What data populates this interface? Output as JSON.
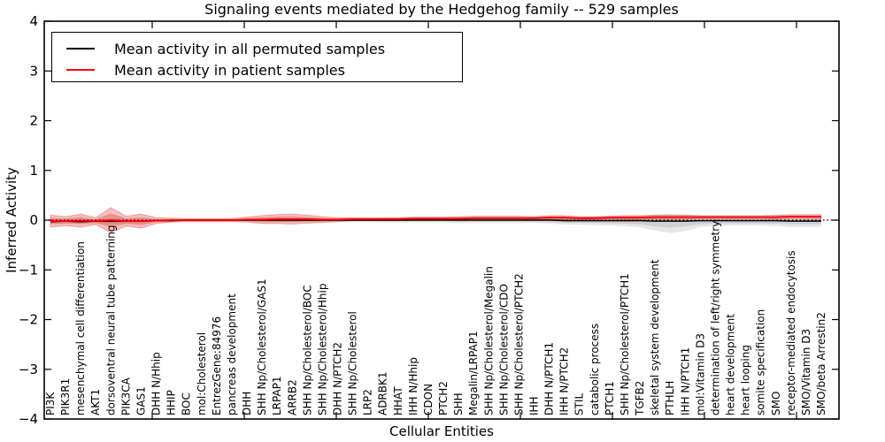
{
  "chart_data": {
    "type": "line",
    "title": "Signaling events mediated by the Hedgehog family -- 529 samples",
    "xlabel": "Cellular Entities",
    "ylabel": "Inferred Activity",
    "ylim": [
      -4,
      4
    ],
    "yticks": [
      4,
      3,
      2,
      1,
      0,
      -1,
      -2,
      -3,
      -4
    ],
    "grid": false,
    "legend_position": "upper left",
    "zero_reference_line": "black dotted line at y=0",
    "x_tick_label_rotation": 90,
    "categories": [
      "PI3K",
      "PIK3R1",
      "mesenchymal cell differentiation",
      "AKT1",
      "dorsoventral neural tube patterning",
      "PIK3CA",
      "GAS1",
      "DHH N/Hhip",
      "HHIP",
      "BOC",
      "mol:Cholesterol",
      "EntrezGene:84976",
      "pancreas development",
      "DHH",
      "SHH Np/Cholesterol/GAS1",
      "LRPAP1",
      "ARRB2",
      "SHH Np/Cholesterol/BOC",
      "SHH Np/Cholesterol/Hhip",
      "DHH N/PTCH2",
      "SHH Np/Cholesterol",
      "LRP2",
      "ADRBK1",
      "HHAT",
      "IHH N/Hhip",
      "CDON",
      "PTCH2",
      "SHH",
      "Megalin/LRPAP1",
      "SHH Np/Cholesterol/Megalin",
      "SHH Np/Cholesterol/CDO",
      "SHH Np/Cholesterol/PTCH2",
      "IHH",
      "DHH N/PTCH1",
      "IHH N/PTCH2",
      "STIL",
      "catabolic process",
      "PTCH1",
      "SHH Np/Cholesterol/PTCH1",
      "TGFB2",
      "skeletal system development",
      "PTHLH",
      "IHH N/PTCH1",
      "mol:Vitamin D3",
      "determination of left/right symmetry",
      "heart development",
      "heart looping",
      "somite specification",
      "SMO",
      "receptor-mediated endocytosis",
      "SMO/Vitamin D3",
      "SMO/beta Arrestin2"
    ],
    "series": [
      {
        "name": "Mean activity in all permuted samples",
        "color": "#000000",
        "band_color": "#787878",
        "values": [
          -0.03,
          -0.02,
          -0.03,
          -0.02,
          -0.02,
          -0.02,
          -0.02,
          -0.01,
          -0.01,
          0,
          0,
          0,
          0,
          0,
          0,
          0,
          0,
          0,
          0,
          0,
          0,
          0,
          0,
          0,
          0,
          0,
          0,
          0,
          0,
          0,
          0,
          0,
          0,
          0,
          -0.01,
          -0.01,
          -0.01,
          -0.01,
          -0.01,
          -0.01,
          -0.02,
          -0.02,
          -0.02,
          -0.01,
          -0.01,
          -0.01,
          -0.01,
          -0.01,
          -0.01,
          -0.02,
          -0.02,
          -0.02
        ],
        "band_upper": [
          0.04,
          0.04,
          0.04,
          0.04,
          0.05,
          0.04,
          0.04,
          0.03,
          0.03,
          0.03,
          0.03,
          0.03,
          0.03,
          0.03,
          0.04,
          0.04,
          0.04,
          0.04,
          0.04,
          0.04,
          0.04,
          0.04,
          0.05,
          0.05,
          0.05,
          0.05,
          0.05,
          0.06,
          0.06,
          0.06,
          0.06,
          0.06,
          0.06,
          0.07,
          0.07,
          0.07,
          0.08,
          0.08,
          0.09,
          0.1,
          0.13,
          0.15,
          0.13,
          0.1,
          0.09,
          0.09,
          0.08,
          0.08,
          0.09,
          0.1,
          0.1,
          0.1
        ],
        "band_lower": [
          0.04,
          0.04,
          0.04,
          0.04,
          0.05,
          0.04,
          0.04,
          0.03,
          0.03,
          0.03,
          0.03,
          0.03,
          0.03,
          0.03,
          0.04,
          0.04,
          0.04,
          0.04,
          0.04,
          0.04,
          0.04,
          0.04,
          0.05,
          0.05,
          0.05,
          0.05,
          0.05,
          0.06,
          0.06,
          0.06,
          0.06,
          0.06,
          0.06,
          0.07,
          0.08,
          0.08,
          0.09,
          0.1,
          0.11,
          0.14,
          0.19,
          0.24,
          0.2,
          0.13,
          0.11,
          0.1,
          0.1,
          0.1,
          0.11,
          0.12,
          0.12,
          0.12
        ]
      },
      {
        "name": "Mean activity in patient samples",
        "color": "#ff0000",
        "band_color": "#dd2d2d",
        "values": [
          -0.02,
          -0.02,
          -0.01,
          -0.02,
          0,
          -0.02,
          -0.02,
          -0.01,
          0,
          0,
          0,
          0,
          0,
          0.01,
          0.01,
          0.02,
          0.02,
          0.02,
          0.01,
          0.01,
          0.02,
          0.02,
          0.02,
          0.02,
          0.03,
          0.03,
          0.03,
          0.03,
          0.04,
          0.04,
          0.04,
          0.04,
          0.04,
          0.05,
          0.05,
          0.04,
          0.04,
          0.05,
          0.05,
          0.05,
          0.06,
          0.06,
          0.06,
          0.06,
          0.06,
          0.06,
          0.06,
          0.06,
          0.06,
          0.07,
          0.07,
          0.07
        ],
        "band_halfwidth": [
          0.12,
          0.09,
          0.13,
          0.07,
          0.25,
          0.1,
          0.14,
          0.06,
          0.04,
          0.03,
          0.03,
          0.03,
          0.03,
          0.05,
          0.08,
          0.09,
          0.1,
          0.08,
          0.06,
          0.04,
          0.03,
          0.03,
          0.03,
          0.03,
          0.03,
          0.03,
          0.03,
          0.04,
          0.04,
          0.04,
          0.04,
          0.04,
          0.03,
          0.04,
          0.04,
          0.03,
          0.03,
          0.03,
          0.04,
          0.04,
          0.04,
          0.04,
          0.04,
          0.03,
          0.03,
          0.03,
          0.03,
          0.03,
          0.04,
          0.04,
          0.04,
          0.04
        ]
      }
    ]
  }
}
